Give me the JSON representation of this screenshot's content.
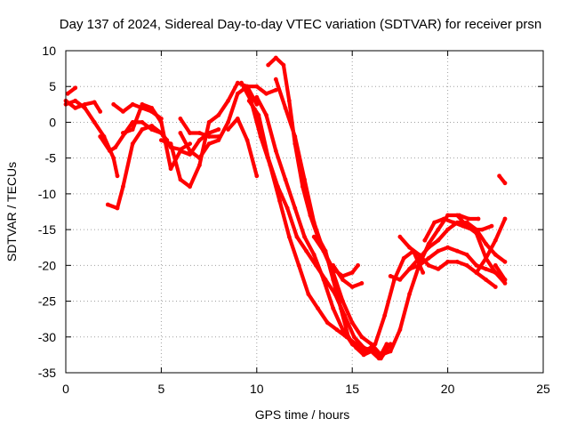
{
  "chart_data": {
    "type": "line",
    "title": "Day 137 of 2024, Sidereal Day-to-day VTEC variation (SDTVAR) for receiver prsn",
    "xlabel": "GPS time / hours",
    "ylabel": "SDTVAR / TECUs",
    "xlim": [
      0,
      25
    ],
    "ylim": [
      -35,
      10
    ],
    "xticks": [
      "0",
      "5",
      "10",
      "15",
      "20",
      "25"
    ],
    "yticks": [
      "10",
      "5",
      "0",
      "-5",
      "-10",
      "-15",
      "-20",
      "-25",
      "-30",
      "-35"
    ],
    "grid": true,
    "series_color": "#ff0000",
    "series": [
      {
        "x": [
          0.0,
          0.5,
          1.0,
          1.5,
          2.0,
          2.5,
          2.7
        ],
        "y": [
          2.5,
          3.0,
          2.0,
          0.0,
          -2.0,
          -5.0,
          -7.5
        ]
      },
      {
        "x": [
          0.1,
          0.5
        ],
        "y": [
          4.0,
          4.8
        ]
      },
      {
        "x": [
          0.0,
          0.5,
          1.0,
          1.5,
          1.8
        ],
        "y": [
          3.0,
          2.0,
          2.5,
          2.8,
          1.5
        ]
      },
      {
        "x": [
          1.8,
          2.3,
          2.6,
          3.1,
          3.5,
          4.0,
          4.5,
          5.0,
          5.3
        ],
        "y": [
          -2.0,
          -4.0,
          -3.5,
          -1.5,
          0.0,
          0.0,
          -1.0,
          -1.5,
          -2.5
        ]
      },
      {
        "x": [
          2.5,
          3.0,
          3.5,
          4.0,
          4.5,
          5.0
        ],
        "y": [
          2.5,
          1.5,
          2.5,
          2.0,
          1.5,
          0.5
        ]
      },
      {
        "x": [
          2.2,
          2.7,
          3.0,
          3.5,
          4.0,
          4.5,
          5.0,
          5.5,
          6.0,
          6.5
        ],
        "y": [
          -11.5,
          -12.0,
          -9.0,
          -3.0,
          -1.0,
          -0.5,
          -1.5,
          -3.5,
          -3.8,
          -3.0
        ]
      },
      {
        "x": [
          3.0,
          3.5,
          4.0,
          4.5,
          5.0,
          5.5,
          6.0,
          6.5,
          7.0,
          7.5,
          8.0
        ],
        "y": [
          -1.5,
          -1.0,
          2.5,
          2.0,
          0.0,
          -6.5,
          -4.0,
          -4.5,
          -2.5,
          -1.5,
          -1.0
        ]
      },
      {
        "x": [
          5.0,
          5.5,
          6.0,
          6.5,
          7.0,
          7.5,
          8.0,
          8.5,
          9.0,
          9.5,
          10.0
        ],
        "y": [
          -2.5,
          -3.0,
          -8.0,
          -9.0,
          -6.0,
          0.0,
          1.0,
          3.0,
          5.5,
          5.0,
          2.5
        ]
      },
      {
        "x": [
          6.0,
          6.5,
          7.0,
          7.5,
          8.0,
          8.5,
          9.0,
          9.5,
          10.0,
          10.5,
          11.0
        ],
        "y": [
          -1.5,
          -4.0,
          -5.0,
          -3.0,
          -2.5,
          0.0,
          4.0,
          5.0,
          5.0,
          4.0,
          4.5
        ]
      },
      {
        "x": [
          6.0,
          6.5,
          7.0,
          7.5,
          8.0
        ],
        "y": [
          0.5,
          -1.5,
          -1.5,
          -2.0,
          -2.0
        ]
      },
      {
        "x": [
          8.5,
          9.0,
          9.5,
          10.0
        ],
        "y": [
          -1.0,
          0.5,
          -2.5,
          -7.5
        ]
      },
      {
        "x": [
          9.2,
          9.7,
          10.2,
          10.7,
          11.2,
          11.7,
          12.2,
          12.7,
          13.2,
          13.7,
          14.2,
          14.7,
          15.2,
          15.7,
          16.2,
          16.7,
          17.2,
          17.7,
          18.2,
          18.7
        ],
        "y": [
          5.5,
          3.0,
          -2.0,
          -6.0,
          -11.0,
          -16.0,
          -20.0,
          -24.0,
          -26.0,
          -28.0,
          -29.0,
          -30.0,
          -31.0,
          -32.0,
          -31.0,
          -27.0,
          -22.0,
          -19.0,
          -18.0,
          -21.0
        ]
      },
      {
        "x": [
          9.6,
          10.1,
          10.6,
          11.1,
          11.6,
          12.1,
          12.6,
          13.1,
          13.6,
          14.1,
          14.6,
          15.1,
          15.6,
          16.1
        ],
        "y": [
          3.0,
          1.0,
          -5.0,
          -9.0,
          -12.0,
          -16.0,
          -18.0,
          -20.0,
          -22.0,
          -24.0,
          -27.0,
          -30.0,
          -31.5,
          -32.0
        ]
      },
      {
        "x": [
          10.0,
          10.5,
          11.0,
          11.5,
          12.0,
          12.5,
          13.0,
          13.5,
          14.0,
          14.5,
          15.0,
          15.5,
          16.0,
          16.5,
          17.0
        ],
        "y": [
          3.5,
          1.0,
          -4.0,
          -8.0,
          -12.0,
          -16.0,
          -18.5,
          -22.0,
          -26.0,
          -29.0,
          -31.0,
          -32.0,
          -31.5,
          -33.0,
          -31.0
        ]
      },
      {
        "x": [
          10.6,
          11.0,
          11.4,
          11.7,
          12.0,
          12.4,
          12.8,
          13.2,
          13.6,
          14.0,
          14.4,
          14.8,
          15.2,
          15.6,
          16.0,
          16.4,
          16.8
        ],
        "y": [
          8.0,
          9.0,
          8.0,
          3.0,
          -3.0,
          -9.0,
          -13.0,
          -16.0,
          -18.0,
          -22.0,
          -26.0,
          -30.0,
          -31.5,
          -32.5,
          -32.0,
          -33.0,
          -31.0
        ]
      },
      {
        "x": [
          11.0,
          11.5,
          12.0,
          12.5,
          13.0,
          13.5,
          14.0,
          14.5,
          15.0,
          15.5,
          16.0,
          16.5,
          17.0,
          17.5,
          18.0,
          18.5,
          19.0,
          19.5,
          20.0,
          20.5,
          21.0,
          21.5,
          22.0,
          22.5,
          23.0
        ],
        "y": [
          6.0,
          2.0,
          -2.0,
          -8.0,
          -14.0,
          -18.0,
          -21.0,
          -25.0,
          -28.0,
          -30.0,
          -31.0,
          -32.5,
          -32.0,
          -29.0,
          -24.0,
          -20.0,
          -17.0,
          -15.0,
          -13.0,
          -13.0,
          -14.5,
          -15.5,
          -19.0,
          -21.0,
          -22.5
        ]
      },
      {
        "x": [
          13.0,
          13.5,
          14.0,
          14.5,
          15.0,
          15.3
        ],
        "y": [
          -16.0,
          -18.0,
          -20.5,
          -21.5,
          -21.0,
          -20.0
        ]
      },
      {
        "x": [
          14.0,
          14.5,
          15.0,
          15.5
        ],
        "y": [
          -20.0,
          -22.0,
          -23.0,
          -22.5
        ]
      },
      {
        "x": [
          17.0,
          17.5,
          18.0,
          18.5,
          19.0,
          19.5,
          20.0,
          20.5,
          21.0,
          21.5,
          22.0,
          22.5,
          23.0
        ],
        "y": [
          -21.5,
          -22.0,
          -20.5,
          -20.0,
          -19.0,
          -18.0,
          -17.5,
          -18.0,
          -18.5,
          -20.0,
          -20.5,
          -21.0,
          -22.0
        ]
      },
      {
        "x": [
          17.5,
          18.0,
          18.5,
          19.0,
          19.5,
          20.0,
          20.5,
          21.0,
          21.5,
          22.0,
          22.5
        ],
        "y": [
          -16.0,
          -17.5,
          -18.5,
          -20.0,
          -20.5,
          -19.5,
          -19.5,
          -20.0,
          -21.0,
          -22.0,
          -23.0
        ]
      },
      {
        "x": [
          18.0,
          18.5,
          19.0,
          19.5,
          20.0,
          20.5,
          21.0,
          21.5,
          22.0,
          22.5,
          23.0
        ],
        "y": [
          -20.5,
          -19.0,
          -17.5,
          -16.5,
          -15.0,
          -14.0,
          -14.0,
          -15.0,
          -17.0,
          -18.5,
          -19.5
        ]
      },
      {
        "x": [
          18.8,
          19.3,
          19.8,
          20.3,
          20.8,
          21.3,
          21.8,
          22.3
        ],
        "y": [
          -16.5,
          -14.0,
          -13.5,
          -14.0,
          -14.5,
          -15.0,
          -15.0,
          -14.5
        ]
      },
      {
        "x": [
          20.6,
          21.1,
          21.6
        ],
        "y": [
          -13.0,
          -13.5,
          -13.5
        ]
      },
      {
        "x": [
          21.5,
          22.0,
          22.5,
          23.0
        ],
        "y": [
          -21.0,
          -19.0,
          -16.5,
          -13.5
        ]
      },
      {
        "x": [
          22.5,
          23.0
        ],
        "y": [
          -20.0,
          -22.0
        ]
      },
      {
        "x": [
          22.7,
          23.0
        ],
        "y": [
          -7.5,
          -8.5
        ]
      }
    ]
  }
}
